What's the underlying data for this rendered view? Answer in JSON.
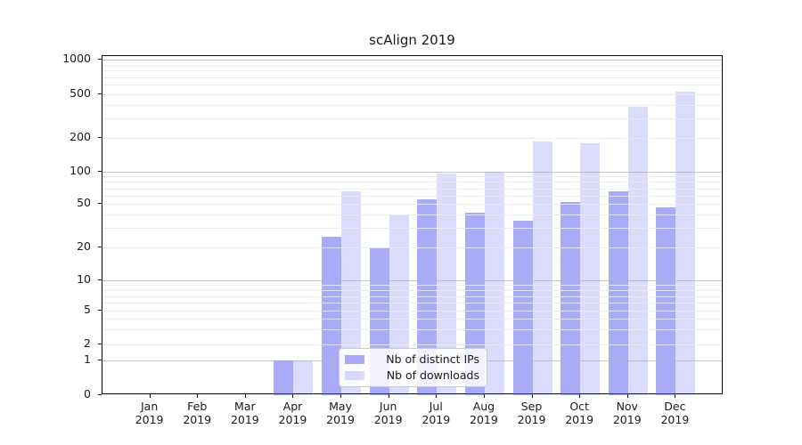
{
  "chart_data": {
    "type": "bar",
    "title": "scAlign 2019",
    "categories": [
      "Jan",
      "Feb",
      "Mar",
      "Apr",
      "May",
      "Jun",
      "Jul",
      "Aug",
      "Sep",
      "Oct",
      "Nov",
      "Dec"
    ],
    "year_label": "2019",
    "series": [
      {
        "name": "Nb of distinct IPs",
        "color": "rgba(92,94,240,0.52)",
        "display_color": "#a9aaf7",
        "values": [
          0,
          0,
          0,
          1,
          25,
          20,
          55,
          42,
          35,
          52,
          66,
          47
        ]
      },
      {
        "name": "Nb of downloads",
        "color": "rgba(92,94,240,0.22)",
        "display_color": "#dadbfa",
        "values": [
          0,
          0,
          0,
          1,
          65,
          40,
          95,
          100,
          185,
          178,
          380,
          520
        ]
      }
    ],
    "xlabel": "",
    "ylabel": "",
    "yaxis": {
      "scale": "symlog",
      "ticks": [
        0,
        1,
        2,
        5,
        10,
        20,
        50,
        100,
        200,
        500,
        1000
      ],
      "major_gridlines": [
        1,
        10,
        100,
        1000
      ],
      "minor_gridlines": [
        2,
        3,
        4,
        5,
        6,
        7,
        8,
        9,
        20,
        30,
        40,
        50,
        60,
        70,
        80,
        90,
        200,
        300,
        400,
        500,
        600,
        700,
        800,
        900
      ],
      "range": [
        0,
        1200
      ]
    },
    "legend": {
      "position": "lower center",
      "entries": [
        "Nb of distinct IPs",
        "Nb of downloads"
      ]
    },
    "grid": "on",
    "colors": {
      "major_grid": "#c2c2c2",
      "minor_grid": "#ececec",
      "axis": "#000000",
      "text": "#1a1a1a",
      "legend_bg": "rgba(255,255,255,0.85)",
      "legend_border": "#cccccc"
    }
  }
}
